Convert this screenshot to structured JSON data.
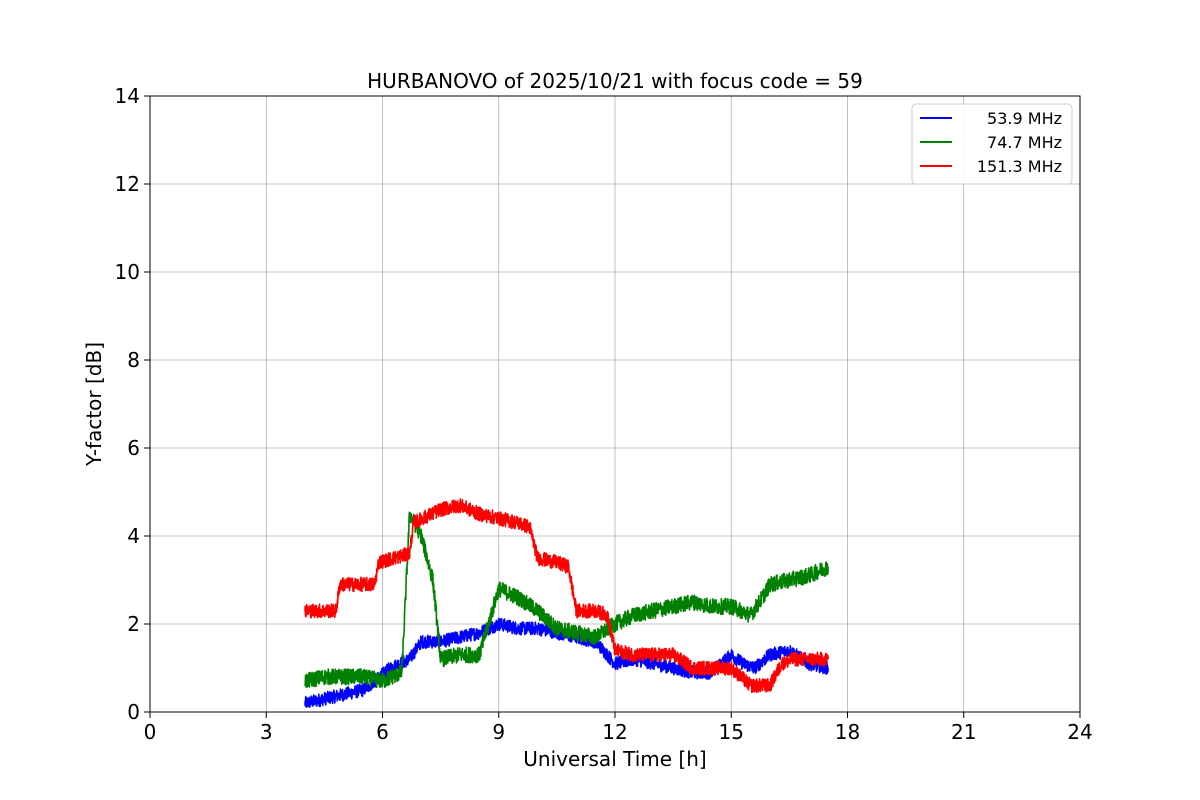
{
  "chart_data": {
    "type": "line",
    "title": "HURBANOVO of 2025/10/21 with focus code = 59",
    "xlabel": "Universal Time [h]",
    "ylabel": "Y-factor [dB]",
    "xlim": [
      0,
      24
    ],
    "ylim": [
      0,
      14
    ],
    "xticks": [
      0,
      3,
      6,
      9,
      12,
      15,
      18,
      21,
      24
    ],
    "yticks": [
      0,
      2,
      4,
      6,
      8,
      10,
      12,
      14
    ],
    "grid": true,
    "legend_position": "top-right",
    "series": [
      {
        "name": "53.9 MHz",
        "color": "#0000ff",
        "noise": 0.15,
        "x": [
          4.0,
          4.5,
          5.0,
          5.5,
          5.8,
          6.2,
          6.7,
          7.0,
          7.5,
          8.0,
          8.5,
          9.0,
          9.5,
          10.0,
          10.5,
          11.0,
          11.5,
          12.0,
          12.5,
          13.0,
          13.5,
          14.0,
          14.5,
          15.0,
          15.3,
          15.6,
          16.0,
          16.5,
          17.0,
          17.5
        ],
        "y": [
          0.2,
          0.3,
          0.4,
          0.5,
          0.7,
          1.0,
          1.2,
          1.6,
          1.6,
          1.7,
          1.8,
          2.0,
          1.9,
          1.9,
          1.8,
          1.7,
          1.6,
          1.1,
          1.2,
          1.1,
          1.0,
          0.9,
          0.9,
          1.3,
          1.1,
          1.0,
          1.3,
          1.4,
          1.1,
          1.0
        ]
      },
      {
        "name": "74.7 MHz",
        "color": "#008000",
        "noise": 0.18,
        "x": [
          4.0,
          4.5,
          5.0,
          5.5,
          6.0,
          6.5,
          6.7,
          7.0,
          7.3,
          7.5,
          8.0,
          8.5,
          9.0,
          9.5,
          10.0,
          10.5,
          11.0,
          11.5,
          12.0,
          12.5,
          13.0,
          13.5,
          14.0,
          14.5,
          15.0,
          15.5,
          15.8,
          16.0,
          16.5,
          17.0,
          17.5
        ],
        "y": [
          0.7,
          0.8,
          0.8,
          0.8,
          0.7,
          0.9,
          4.5,
          4.0,
          3.0,
          1.2,
          1.3,
          1.3,
          2.8,
          2.6,
          2.3,
          1.9,
          1.8,
          1.7,
          2.0,
          2.2,
          2.3,
          2.4,
          2.5,
          2.4,
          2.4,
          2.2,
          2.6,
          2.9,
          3.0,
          3.1,
          3.3
        ]
      },
      {
        "name": "151.3 MHz",
        "color": "#ff0000",
        "noise": 0.16,
        "x": [
          4.0,
          4.8,
          4.9,
          5.3,
          5.8,
          5.9,
          6.3,
          6.7,
          6.8,
          7.5,
          8.0,
          8.5,
          9.0,
          9.5,
          9.8,
          10.0,
          10.5,
          10.8,
          11.0,
          11.5,
          11.8,
          12.0,
          12.5,
          13.0,
          13.5,
          14.0,
          14.5,
          15.0,
          15.5,
          16.0,
          16.3,
          16.6,
          17.0,
          17.5
        ],
        "y": [
          2.3,
          2.3,
          2.9,
          2.9,
          2.9,
          3.4,
          3.5,
          3.6,
          4.3,
          4.6,
          4.7,
          4.5,
          4.4,
          4.3,
          4.2,
          3.5,
          3.4,
          3.3,
          2.3,
          2.3,
          2.2,
          1.4,
          1.3,
          1.3,
          1.3,
          1.0,
          1.0,
          1.0,
          0.6,
          0.6,
          1.1,
          1.2,
          1.2,
          1.2
        ]
      }
    ]
  }
}
